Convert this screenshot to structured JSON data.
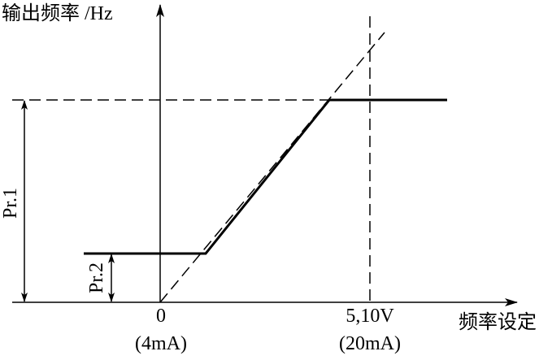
{
  "axes": {
    "y_label": "输出频率 /Hz",
    "x_label": "频率设定"
  },
  "x_ticks": [
    {
      "label": "0",
      "sub": "(4mA)"
    },
    {
      "label": "5,10V",
      "sub": "(20mA)"
    }
  ],
  "params": {
    "pr1": "Pr.1",
    "pr2": "Pr.2"
  }
}
